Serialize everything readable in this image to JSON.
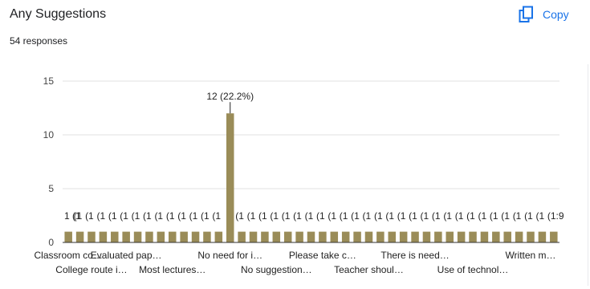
{
  "header": {
    "title": "Any Suggestions",
    "responses": "54 responses",
    "copy_label": "Copy",
    "copy_icon": "copy-icon"
  },
  "colors": {
    "bar": "#9a8c58",
    "grid": "#e0e0e0",
    "accent": "#1a73e8",
    "axis": "#333333"
  },
  "chart_data": {
    "type": "bar",
    "title": "Any Suggestions",
    "ylim": [
      0,
      15
    ],
    "yticks": [
      0,
      5,
      10,
      15
    ],
    "grid": true,
    "values": [
      1,
      1,
      1,
      1,
      1,
      1,
      1,
      1,
      1,
      1,
      1,
      1,
      1,
      1,
      12,
      1,
      1,
      1,
      1,
      1,
      1,
      1,
      1,
      1,
      1,
      1,
      1,
      1,
      1,
      1,
      1,
      1,
      1,
      1,
      1,
      1,
      1,
      1,
      1,
      1,
      1,
      1,
      1
    ],
    "data_labels": {
      "0": "1 (1",
      "1": "(1",
      "2": "(1",
      "3": "(1",
      "4": "(1",
      "5": "(1",
      "6": "(1",
      "7": "(1",
      "8": "(1",
      "9": "(1",
      "10": "(1",
      "11": "(1",
      "12": "(1",
      "13": "(1",
      "14": "12 (22.2%)",
      "15": "(1",
      "16": "(1",
      "17": "(1",
      "18": "(1",
      "19": "(1",
      "20": "(1",
      "21": "(1",
      "22": "(1",
      "23": "(1",
      "24": "(1",
      "25": "(1",
      "26": "(1",
      "27": "(1",
      "28": "(1",
      "29": "(1",
      "30": "(1",
      "31": "(1",
      "32": "(1",
      "33": "(1",
      "34": "(1",
      "35": "(1",
      "36": "(1",
      "37": "(1",
      "38": "(1",
      "39": "(1",
      "40": "(1",
      "41": "(1",
      "42": "(1:9"
    },
    "category_labels": [
      {
        "index": 0,
        "row": 0,
        "text": "Classroom co…"
      },
      {
        "index": 2,
        "row": 1,
        "text": "College route i…"
      },
      {
        "index": 5,
        "row": 0,
        "text": "Evaluated pap…"
      },
      {
        "index": 9,
        "row": 1,
        "text": "Most lectures…"
      },
      {
        "index": 14,
        "row": 0,
        "text": "No need for i…"
      },
      {
        "index": 18,
        "row": 1,
        "text": "No suggestion…"
      },
      {
        "index": 22,
        "row": 0,
        "text": "Please take c…"
      },
      {
        "index": 26,
        "row": 1,
        "text": "Teacher shoul…"
      },
      {
        "index": 30,
        "row": 0,
        "text": "There is need…"
      },
      {
        "index": 35,
        "row": 1,
        "text": "Use of technol…"
      },
      {
        "index": 40,
        "row": 0,
        "text": "Written m…"
      }
    ]
  }
}
